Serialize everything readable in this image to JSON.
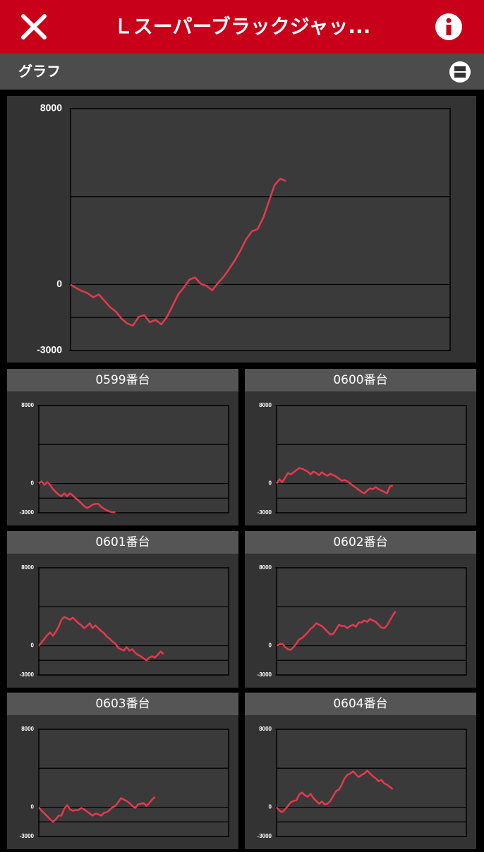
{
  "header": {
    "title": "Ｌスーパーブラックジャッ...",
    "section": "グラフ"
  },
  "chart_data": [
    {
      "type": "line",
      "color": "#e8384f",
      "xlim": [
        0,
        67
      ],
      "ylim": [
        -3000,
        8000
      ],
      "yticks": [
        -3000,
        0,
        8000
      ],
      "gridlines": [
        -1500,
        0,
        4000
      ],
      "values": [
        0,
        -160,
        -290,
        -390,
        -580,
        -450,
        -740,
        -1030,
        -1230,
        -1550,
        -1770,
        -1870,
        -1480,
        -1390,
        -1710,
        -1610,
        -1810,
        -1480,
        -970,
        -450,
        -130,
        230,
        320,
        30,
        -60,
        -260,
        60,
        350,
        710,
        1100,
        1550,
        2060,
        2420,
        2520,
        3030,
        3770,
        4520,
        4810,
        4710
      ]
    },
    {
      "type": "line",
      "title": "0599番台",
      "color": "#e8384f",
      "xlim": [
        0,
        67
      ],
      "ylim": [
        -3000,
        8000
      ],
      "yticks": [
        -3000,
        0,
        8000
      ],
      "gridlines": [
        -1500,
        0,
        4000
      ],
      "values": [
        0,
        220,
        -140,
        140,
        -140,
        -580,
        -860,
        -1150,
        -1300,
        -1010,
        -1300,
        -1010,
        -1220,
        -1510,
        -1730,
        -2020,
        -2310,
        -2520,
        -2380,
        -2160,
        -2090,
        -2090,
        -2380,
        -2590,
        -2740,
        -2880,
        -2950,
        -2950
      ]
    },
    {
      "type": "line",
      "title": "0600番台",
      "color": "#e8384f",
      "xlim": [
        0,
        67
      ],
      "ylim": [
        -3000,
        8000
      ],
      "yticks": [
        -3000,
        0,
        8000
      ],
      "gridlines": [
        -1500,
        0,
        4000
      ],
      "values": [
        0,
        430,
        140,
        580,
        1080,
        940,
        1150,
        1370,
        1590,
        1510,
        1370,
        1220,
        940,
        1220,
        1080,
        860,
        1150,
        940,
        790,
        1010,
        860,
        720,
        500,
        290,
        360,
        220,
        0,
        -220,
        -430,
        -650,
        -860,
        -1010,
        -720,
        -500,
        -580,
        -360,
        -580,
        -720,
        -860,
        -1010,
        -290,
        -220
      ]
    },
    {
      "type": "line",
      "title": "0601番台",
      "color": "#e8384f",
      "xlim": [
        0,
        67
      ],
      "ylim": [
        -3000,
        8000
      ],
      "yticks": [
        -3000,
        0,
        8000
      ],
      "gridlines": [
        -1500,
        0,
        4000
      ],
      "values": [
        0,
        360,
        720,
        1080,
        1370,
        1010,
        1440,
        1950,
        2670,
        2960,
        2810,
        2670,
        2880,
        2590,
        2310,
        2090,
        1800,
        2020,
        2310,
        1800,
        2090,
        1800,
        1510,
        1300,
        940,
        720,
        430,
        220,
        -220,
        -360,
        -500,
        -140,
        -500,
        -360,
        -720,
        -940,
        -1080,
        -1300,
        -1510,
        -1220,
        -1080,
        -1220,
        -940,
        -580,
        -860
      ]
    },
    {
      "type": "line",
      "title": "0602番台",
      "color": "#e8384f",
      "xlim": [
        0,
        67
      ],
      "ylim": [
        -3000,
        8000
      ],
      "yticks": [
        -3000,
        0,
        8000
      ],
      "gridlines": [
        -1500,
        0,
        4000
      ],
      "values": [
        0,
        140,
        220,
        -140,
        -360,
        -430,
        -140,
        220,
        650,
        790,
        1080,
        1370,
        1730,
        1950,
        2310,
        2160,
        2020,
        1730,
        1440,
        1150,
        1220,
        1660,
        2160,
        2020,
        2020,
        1800,
        2020,
        2160,
        1950,
        2380,
        2380,
        2590,
        2450,
        2740,
        2590,
        2450,
        2160,
        1870,
        1800,
        2090,
        2590,
        3100,
        3530
      ]
    },
    {
      "type": "line",
      "title": "0603番台",
      "color": "#e8384f",
      "xlim": [
        0,
        67
      ],
      "ylim": [
        -3000,
        8000
      ],
      "yticks": [
        -3000,
        0,
        8000
      ],
      "gridlines": [
        -1500,
        0,
        4000
      ],
      "values": [
        0,
        -360,
        -650,
        -940,
        -1230,
        -1510,
        -1230,
        -860,
        -860,
        -140,
        220,
        -220,
        -360,
        -290,
        -290,
        -70,
        -220,
        -430,
        -650,
        -860,
        -650,
        -720,
        -860,
        -580,
        -500,
        -290,
        0,
        140,
        500,
        940,
        790,
        650,
        430,
        140,
        -70,
        290,
        360,
        430,
        140,
        430,
        790,
        1080
      ]
    },
    {
      "type": "line",
      "title": "0604番台",
      "color": "#e8384f",
      "xlim": [
        0,
        67
      ],
      "ylim": [
        -3000,
        8000
      ],
      "yticks": [
        -3000,
        0,
        8000
      ],
      "gridlines": [
        -1500,
        0,
        4000
      ],
      "values": [
        0,
        -360,
        -500,
        -220,
        140,
        500,
        650,
        720,
        1300,
        1510,
        1220,
        1080,
        1370,
        940,
        650,
        360,
        580,
        290,
        360,
        650,
        1150,
        1660,
        1800,
        2310,
        2960,
        3320,
        3460,
        3680,
        3390,
        3100,
        3320,
        3460,
        3750,
        3460,
        3170,
        2960,
        2670,
        2810,
        2450,
        2310,
        2090,
        1870
      ]
    }
  ]
}
